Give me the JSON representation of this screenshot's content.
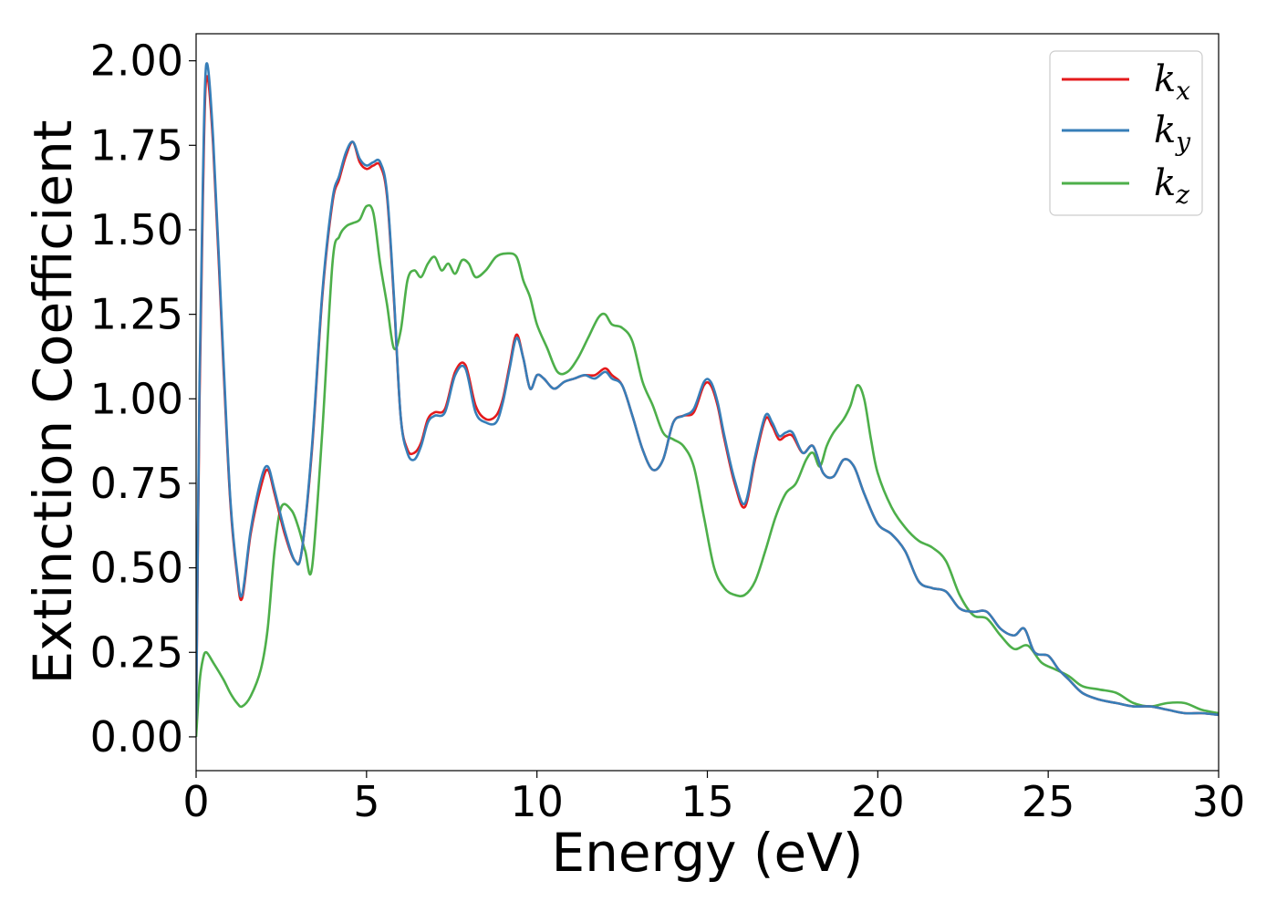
{
  "chart_data": {
    "type": "line",
    "title": "",
    "xlabel": "Energy (eV)",
    "ylabel": "Extinction Coefficient",
    "xlim": [
      0,
      30
    ],
    "ylim": [
      -0.1,
      2.08
    ],
    "xticks": [
      0,
      5,
      10,
      15,
      20,
      25,
      30
    ],
    "xtick_labels": [
      "0",
      "5",
      "10",
      "15",
      "20",
      "25",
      "30"
    ],
    "yticks": [
      0,
      0.25,
      0.5,
      0.75,
      1.0,
      1.25,
      1.5,
      1.75,
      2.0
    ],
    "ytick_labels": [
      "0.00",
      "0.25",
      "0.50",
      "0.75",
      "1.00",
      "1.25",
      "1.50",
      "1.75",
      "2.00"
    ],
    "grid": false,
    "legend_position": "top-right",
    "series": [
      {
        "name": "k",
        "subscript": "x",
        "color": "#e41a1c",
        "x": [
          0,
          0.1,
          0.2,
          0.3,
          0.5,
          0.8,
          1.0,
          1.2,
          1.35,
          1.6,
          1.9,
          2.1,
          2.3,
          2.6,
          2.9,
          3.1,
          3.4,
          3.7,
          4.0,
          4.2,
          4.4,
          4.6,
          4.8,
          5.0,
          5.2,
          5.4,
          5.6,
          5.8,
          6.0,
          6.2,
          6.4,
          6.6,
          6.8,
          7.0,
          7.3,
          7.6,
          7.9,
          8.2,
          8.5,
          8.8,
          9.0,
          9.2,
          9.4,
          9.6,
          9.8,
          10.0,
          10.2,
          10.5,
          10.8,
          11.1,
          11.4,
          11.7,
          12.0,
          12.2,
          12.5,
          12.8,
          13.1,
          13.4,
          13.7,
          14.0,
          14.3,
          14.6,
          14.9,
          15.1,
          15.3,
          15.5,
          15.8,
          16.1,
          16.4,
          16.7,
          16.9,
          17.1,
          17.3,
          17.5,
          17.8,
          18.1,
          18.4,
          18.7,
          19.0,
          19.3,
          19.6,
          20.0,
          20.4,
          20.8,
          21.2,
          21.6,
          22.0,
          22.4,
          22.8,
          23.2,
          23.6,
          24.0,
          24.3,
          24.6,
          25.0,
          25.3,
          25.6,
          26.0,
          26.5,
          27.0,
          27.5,
          28.0,
          28.5,
          29.0,
          29.5,
          30.0
        ],
        "y": [
          0.05,
          1.0,
          1.6,
          1.95,
          1.75,
          1.1,
          0.7,
          0.48,
          0.41,
          0.6,
          0.74,
          0.79,
          0.72,
          0.6,
          0.52,
          0.55,
          0.85,
          1.3,
          1.58,
          1.65,
          1.72,
          1.76,
          1.7,
          1.68,
          1.69,
          1.69,
          1.6,
          1.3,
          0.95,
          0.85,
          0.84,
          0.87,
          0.94,
          0.96,
          0.97,
          1.08,
          1.1,
          0.98,
          0.94,
          0.95,
          1.0,
          1.1,
          1.19,
          1.12,
          1.03,
          1.07,
          1.06,
          1.03,
          1.05,
          1.06,
          1.07,
          1.07,
          1.09,
          1.07,
          1.04,
          0.95,
          0.85,
          0.79,
          0.82,
          0.93,
          0.95,
          0.96,
          1.04,
          1.04,
          0.98,
          0.88,
          0.75,
          0.68,
          0.82,
          0.94,
          0.92,
          0.88,
          0.89,
          0.89,
          0.84,
          0.86,
          0.78,
          0.77,
          0.82,
          0.8,
          0.72,
          0.63,
          0.6,
          0.55,
          0.46,
          0.44,
          0.43,
          0.38,
          0.37,
          0.37,
          0.32,
          0.3,
          0.32,
          0.25,
          0.24,
          0.2,
          0.17,
          0.13,
          0.11,
          0.1,
          0.09,
          0.09,
          0.08,
          0.07,
          0.07,
          0.065
        ]
      },
      {
        "name": "k",
        "subscript": "y",
        "color": "#377eb8",
        "x": [
          0,
          0.1,
          0.2,
          0.3,
          0.5,
          0.8,
          1.0,
          1.2,
          1.35,
          1.6,
          1.9,
          2.1,
          2.3,
          2.6,
          2.9,
          3.1,
          3.4,
          3.7,
          4.0,
          4.2,
          4.4,
          4.6,
          4.8,
          5.0,
          5.2,
          5.4,
          5.6,
          5.8,
          6.0,
          6.2,
          6.4,
          6.6,
          6.8,
          7.0,
          7.3,
          7.6,
          7.9,
          8.2,
          8.5,
          8.8,
          9.0,
          9.2,
          9.4,
          9.6,
          9.8,
          10.0,
          10.2,
          10.5,
          10.8,
          11.1,
          11.4,
          11.7,
          12.0,
          12.2,
          12.5,
          12.8,
          13.1,
          13.4,
          13.7,
          14.0,
          14.3,
          14.6,
          14.9,
          15.1,
          15.3,
          15.5,
          15.8,
          16.1,
          16.4,
          16.7,
          16.9,
          17.1,
          17.3,
          17.5,
          17.8,
          18.1,
          18.4,
          18.7,
          19.0,
          19.3,
          19.6,
          20.0,
          20.4,
          20.8,
          21.2,
          21.6,
          22.0,
          22.4,
          22.8,
          23.2,
          23.6,
          24.0,
          24.3,
          24.6,
          25.0,
          25.3,
          25.6,
          26.0,
          26.5,
          27.0,
          27.5,
          28.0,
          28.5,
          29.0,
          29.5,
          30.0
        ],
        "y": [
          0.05,
          1.05,
          1.65,
          1.99,
          1.77,
          1.12,
          0.71,
          0.49,
          0.42,
          0.61,
          0.76,
          0.8,
          0.73,
          0.61,
          0.52,
          0.55,
          0.86,
          1.31,
          1.59,
          1.66,
          1.73,
          1.76,
          1.71,
          1.69,
          1.7,
          1.7,
          1.61,
          1.31,
          0.95,
          0.84,
          0.82,
          0.86,
          0.93,
          0.95,
          0.96,
          1.07,
          1.09,
          0.96,
          0.93,
          0.93,
          0.99,
          1.09,
          1.18,
          1.12,
          1.03,
          1.07,
          1.06,
          1.03,
          1.05,
          1.06,
          1.07,
          1.06,
          1.08,
          1.06,
          1.04,
          0.95,
          0.85,
          0.79,
          0.82,
          0.93,
          0.95,
          0.97,
          1.05,
          1.05,
          0.99,
          0.89,
          0.76,
          0.69,
          0.83,
          0.95,
          0.93,
          0.89,
          0.9,
          0.9,
          0.84,
          0.86,
          0.78,
          0.77,
          0.82,
          0.8,
          0.72,
          0.63,
          0.6,
          0.55,
          0.46,
          0.44,
          0.43,
          0.38,
          0.37,
          0.37,
          0.32,
          0.3,
          0.32,
          0.25,
          0.24,
          0.2,
          0.17,
          0.13,
          0.11,
          0.1,
          0.09,
          0.09,
          0.08,
          0.07,
          0.07,
          0.065
        ]
      },
      {
        "name": "k",
        "subscript": "z",
        "color": "#4daf4a",
        "x": [
          0,
          0.1,
          0.2,
          0.3,
          0.5,
          0.8,
          1.0,
          1.2,
          1.35,
          1.6,
          1.9,
          2.1,
          2.3,
          2.5,
          2.8,
          3.0,
          3.2,
          3.4,
          3.7,
          4.0,
          4.2,
          4.4,
          4.6,
          4.8,
          5.0,
          5.2,
          5.4,
          5.6,
          5.8,
          6.0,
          6.2,
          6.4,
          6.6,
          6.8,
          7.0,
          7.2,
          7.4,
          7.6,
          7.8,
          8.0,
          8.2,
          8.5,
          8.8,
          9.1,
          9.4,
          9.6,
          9.8,
          10.0,
          10.3,
          10.6,
          10.9,
          11.2,
          11.5,
          11.8,
          12.0,
          12.2,
          12.5,
          12.8,
          13.1,
          13.4,
          13.7,
          14.0,
          14.3,
          14.6,
          14.9,
          15.2,
          15.5,
          15.8,
          16.1,
          16.4,
          16.7,
          17.0,
          17.3,
          17.6,
          17.9,
          18.1,
          18.3,
          18.5,
          18.7,
          19.0,
          19.2,
          19.4,
          19.6,
          19.8,
          20.0,
          20.4,
          20.8,
          21.2,
          21.6,
          22.0,
          22.4,
          22.8,
          23.2,
          23.6,
          24.0,
          24.4,
          24.8,
          25.2,
          25.6,
          26.0,
          26.5,
          27.0,
          27.5,
          28.0,
          28.5,
          29.0,
          29.5,
          30.0
        ],
        "y": [
          0.0,
          0.16,
          0.23,
          0.25,
          0.22,
          0.17,
          0.13,
          0.1,
          0.09,
          0.12,
          0.2,
          0.32,
          0.55,
          0.68,
          0.67,
          0.62,
          0.55,
          0.5,
          0.9,
          1.4,
          1.48,
          1.51,
          1.52,
          1.53,
          1.57,
          1.55,
          1.4,
          1.28,
          1.15,
          1.2,
          1.35,
          1.38,
          1.36,
          1.4,
          1.42,
          1.38,
          1.4,
          1.37,
          1.41,
          1.4,
          1.36,
          1.38,
          1.42,
          1.43,
          1.42,
          1.35,
          1.3,
          1.22,
          1.15,
          1.08,
          1.08,
          1.12,
          1.18,
          1.24,
          1.25,
          1.22,
          1.21,
          1.17,
          1.05,
          0.98,
          0.9,
          0.88,
          0.86,
          0.8,
          0.65,
          0.5,
          0.44,
          0.42,
          0.42,
          0.46,
          0.55,
          0.65,
          0.72,
          0.75,
          0.82,
          0.84,
          0.8,
          0.86,
          0.9,
          0.94,
          0.98,
          1.04,
          1.0,
          0.88,
          0.78,
          0.68,
          0.62,
          0.58,
          0.56,
          0.52,
          0.42,
          0.36,
          0.35,
          0.3,
          0.26,
          0.27,
          0.22,
          0.2,
          0.18,
          0.15,
          0.14,
          0.13,
          0.1,
          0.09,
          0.1,
          0.1,
          0.08,
          0.07
        ]
      }
    ]
  }
}
